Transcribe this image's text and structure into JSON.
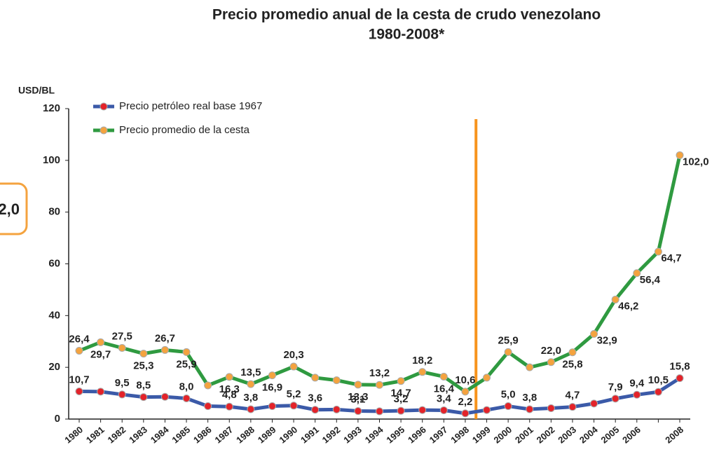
{
  "chart_data": {
    "type": "line",
    "title": "Precio promedio anual de la cesta de crudo venezolano",
    "subtitle": "1980-2008*",
    "y_label": "USD/BL",
    "annotation": "2,0",
    "categories": [
      "1980",
      "1981",
      "1982",
      "1983",
      "1984",
      "1985",
      "1986",
      "1987",
      "1988",
      "1989",
      "1990",
      "1991",
      "1992",
      "1993",
      "1994",
      "1995",
      "1996",
      "1997",
      "1998",
      "1999",
      "2000",
      "2001",
      "2002",
      "2003",
      "2004",
      "2005",
      "2006",
      null,
      "2008"
    ],
    "series": [
      {
        "name": "Precio petróleo real base 1967",
        "color": "#3b5aa8",
        "marker_color": "#e3232a",
        "values": [
          10.7,
          10.6,
          9.5,
          8.5,
          8.6,
          8.0,
          5.0,
          4.8,
          3.8,
          5.0,
          5.2,
          3.6,
          3.7,
          3.1,
          3.0,
          3.2,
          3.5,
          3.4,
          2.2,
          3.5,
          5.0,
          3.8,
          4.2,
          4.7,
          6.0,
          7.9,
          9.4,
          10.5,
          15.8
        ],
        "value_labels": [
          "10,7",
          null,
          "9,5",
          "8,5",
          null,
          "8,0",
          null,
          "4,8",
          "3,8",
          null,
          "5,2",
          "3,6",
          null,
          "3,1",
          null,
          "3,2",
          null,
          "3,4",
          "2,2",
          null,
          "5,0",
          "3,8",
          null,
          "4,7",
          null,
          "7,9",
          "9,4",
          "10,5",
          "15,8"
        ]
      },
      {
        "name": "Precio promedio de la cesta",
        "color": "#2f9a40",
        "marker_color": "#f4a33f",
        "values": [
          26.4,
          29.7,
          27.5,
          25.3,
          26.7,
          25.9,
          13.0,
          16.3,
          13.5,
          16.9,
          20.3,
          16.0,
          15.0,
          13.3,
          13.2,
          14.7,
          18.2,
          16.4,
          10.6,
          16.0,
          25.9,
          20.0,
          22.0,
          25.8,
          32.9,
          46.2,
          56.4,
          64.7,
          102.0
        ],
        "value_labels": [
          "26,4",
          "29,7",
          "27,5",
          "25,3",
          "26,7",
          "25,9",
          null,
          "16,3",
          "13,5",
          "16,9",
          "20,3",
          null,
          null,
          "13,3",
          "13,2",
          "14,7",
          "18,2",
          "16,4",
          "10,6",
          null,
          "25,9",
          null,
          "22,0",
          "25,8",
          "32,9",
          "46,2",
          "56,4",
          "64,7",
          "102,0"
        ]
      }
    ],
    "ylim": [
      0,
      120
    ],
    "yticks": [
      0,
      20,
      40,
      60,
      80,
      100,
      120
    ],
    "marker_line_color": "#f7941d",
    "grid": false
  }
}
